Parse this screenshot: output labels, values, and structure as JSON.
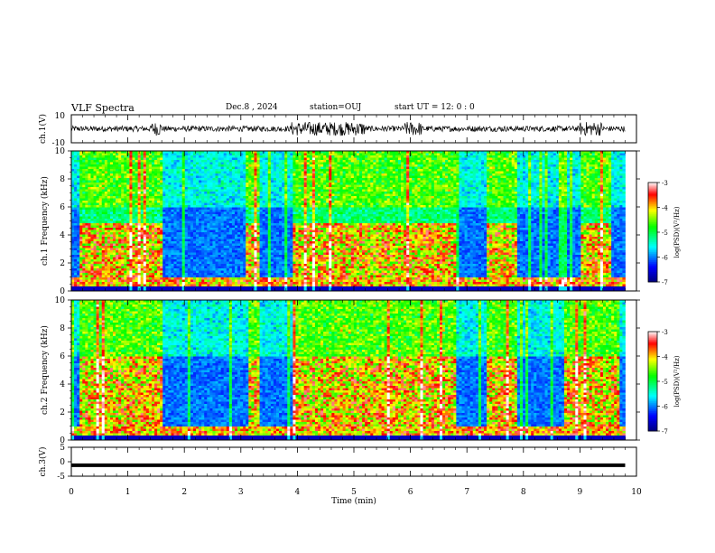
{
  "header": {
    "title": "VLF Spectra",
    "date": "Dec.8  , 2024",
    "station": "station=OUJ",
    "start": "start  UT  =   12: 0  : 0"
  },
  "chart_data": [
    {
      "type": "line",
      "id": "ch1-waveform",
      "ylabel": "ch.1(V)",
      "ylim": [
        -10,
        10
      ],
      "yticks": [
        "10",
        "-10"
      ],
      "xlim": [
        0,
        10
      ],
      "description_values": {
        "baseline": 0,
        "amplitude_typical": 2,
        "amplitude_bursts": 5
      }
    },
    {
      "type": "heatmap",
      "id": "ch1-spectrogram",
      "ylabel": "ch.1 Frequency (kHz)",
      "xlim": [
        0,
        10
      ],
      "ylim": [
        0,
        10
      ],
      "yticks": [
        "0",
        "2",
        "4",
        "6",
        "8",
        "10"
      ],
      "data_end_min": 9.8,
      "active_intervals_min": [
        [
          0.15,
          1.6
        ],
        [
          3.1,
          3.35
        ],
        [
          3.9,
          6.8
        ],
        [
          7.35,
          7.9
        ],
        [
          9.0,
          9.55
        ]
      ],
      "active_band_kHz": [
        0.5,
        4.8
      ]
    },
    {
      "type": "heatmap",
      "id": "ch2-spectrogram",
      "ylabel": "ch.2 Frequency (kHz)",
      "xlim": [
        0,
        10
      ],
      "ylim": [
        0,
        10
      ],
      "yticks": [
        "0",
        "2",
        "4",
        "6",
        "8",
        "10"
      ],
      "data_end_min": 9.8,
      "active_intervals_min": [
        [
          0.15,
          1.6
        ],
        [
          3.15,
          3.35
        ],
        [
          3.9,
          6.8
        ],
        [
          7.35,
          7.9
        ],
        [
          8.7,
          9.7
        ]
      ],
      "active_band_kHz": [
        0.5,
        6.0
      ]
    },
    {
      "type": "line",
      "id": "ch3-signal",
      "ylabel": "ch.3(V)",
      "ylim": [
        -5,
        5
      ],
      "yticks": [
        "5",
        "0",
        "-5"
      ],
      "xlim": [
        0,
        10
      ],
      "values_constant": -1.2,
      "xlabel": "Time  (min)",
      "xticks": [
        "0",
        "1",
        "2",
        "3",
        "4",
        "5",
        "6",
        "7",
        "8",
        "9",
        "10"
      ]
    }
  ],
  "colorbar": {
    "label": "log(PSD)(V²/Hz)",
    "ticks": [
      "-3",
      "-4",
      "-5",
      "-6",
      "-7"
    ],
    "range": [
      -7,
      -3
    ],
    "colors": [
      "#00007f",
      "#0000ff",
      "#00ffff",
      "#00ff00",
      "#ffff00",
      "#ff0000",
      "#ffffff"
    ]
  }
}
